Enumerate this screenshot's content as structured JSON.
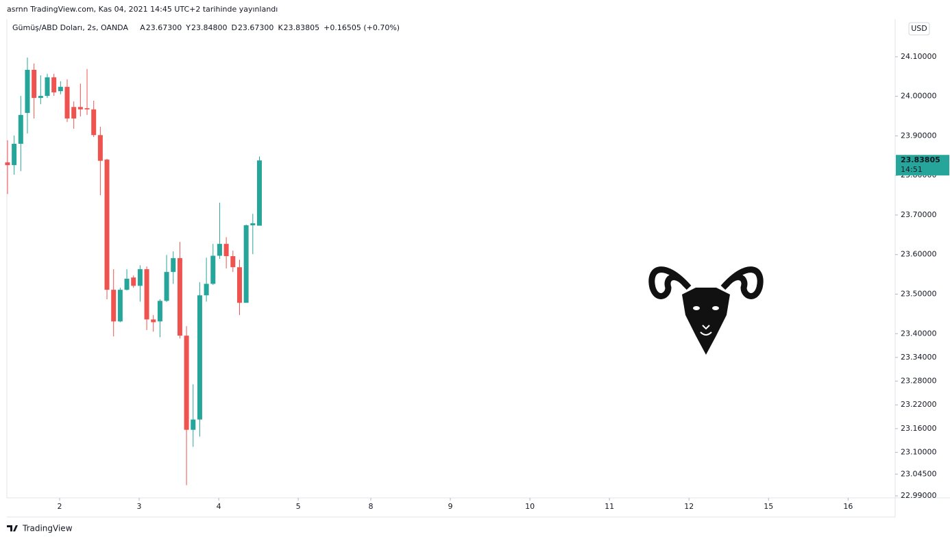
{
  "header": {
    "published": "asrnn TradingView.com, Kas 04, 2021 14:45 UTC+2 tarihinde yayınlandı",
    "symbol": "Gümüş/ABD Doları, 2s, OANDA",
    "ohlc": [
      {
        "key": "A",
        "value": "23.67300"
      },
      {
        "key": "Y",
        "value": "23.84800"
      },
      {
        "key": "D",
        "value": "23.67300"
      },
      {
        "key": "K",
        "value": "23.83805"
      }
    ],
    "change": "+0.16505 (+0.70%)"
  },
  "currency": "USD",
  "last_price_label": "23.83805",
  "countdown": "14:51",
  "footer": "TradingView",
  "chart_data": {
    "type": "candlestick",
    "up_color": "#26a69a",
    "down_color": "#ef5350",
    "open": [
      23.833,
      23.826,
      23.88,
      23.958,
      24.067,
      23.996,
      24.001,
      24.048,
      24.013,
      24.024,
      23.973,
      23.973,
      23.97,
      23.967,
      23.902,
      23.84,
      23.511,
      23.431,
      23.511,
      23.542,
      23.521,
      23.563,
      23.436,
      23.431,
      23.483,
      23.556,
      23.591,
      23.395,
      23.157,
      23.183,
      23.497,
      23.526,
      23.597,
      23.627,
      23.596,
      23.568,
      23.478,
      23.674,
      23.673
    ],
    "high": [
      23.889,
      23.901,
      24.001,
      24.098,
      24.083,
      24.053,
      24.057,
      24.057,
      24.038,
      24.043,
      23.987,
      24.032,
      24.069,
      23.989,
      23.923,
      23.842,
      23.563,
      23.516,
      23.563,
      23.547,
      23.573,
      23.57,
      23.447,
      23.487,
      23.599,
      23.608,
      23.632,
      23.419,
      23.272,
      23.53,
      23.592,
      23.627,
      23.731,
      23.644,
      23.61,
      23.587,
      23.676,
      23.703,
      23.848
    ],
    "low": [
      23.753,
      23.802,
      23.811,
      23.906,
      23.944,
      23.98,
      23.996,
      24.001,
      24.005,
      23.935,
      23.918,
      23.949,
      23.953,
      23.897,
      23.75,
      23.487,
      23.393,
      23.429,
      23.509,
      23.516,
      23.481,
      23.409,
      23.405,
      23.391,
      23.48,
      23.526,
      23.388,
      23.017,
      23.114,
      23.14,
      23.481,
      23.523,
      23.589,
      23.565,
      23.556,
      23.447,
      23.478,
      23.601,
      23.673
    ],
    "close": [
      23.826,
      23.88,
      23.953,
      24.067,
      23.996,
      24.001,
      24.048,
      24.01,
      24.024,
      23.944,
      23.944,
      23.967,
      23.967,
      23.902,
      23.837,
      23.511,
      23.431,
      23.511,
      23.539,
      23.521,
      23.563,
      23.436,
      23.429,
      23.483,
      23.556,
      23.591,
      23.395,
      23.157,
      23.183,
      23.497,
      23.526,
      23.597,
      23.627,
      23.596,
      23.568,
      23.478,
      23.674,
      23.679,
      23.838
    ],
    "xlim": [
      -0.1,
      133.9
    ],
    "xticks": [
      {
        "value": 7.86,
        "label": "2"
      },
      {
        "value": 19.86,
        "label": "3"
      },
      {
        "value": 31.86,
        "label": "4"
      },
      {
        "value": 43.86,
        "label": "5"
      },
      {
        "value": 54.8,
        "label": "8"
      },
      {
        "value": 66.8,
        "label": "9"
      },
      {
        "value": 78.8,
        "label": "10"
      },
      {
        "value": 90.8,
        "label": "11"
      },
      {
        "value": 102.8,
        "label": "12"
      },
      {
        "value": 114.8,
        "label": "15"
      },
      {
        "value": 126.8,
        "label": "16"
      }
    ],
    "ylim": [
      22.985,
      24.195
    ],
    "yticks": [
      {
        "value": 24.1,
        "label": "24.10000"
      },
      {
        "value": 24.0,
        "label": "24.00000"
      },
      {
        "value": 23.9,
        "label": "23.90000"
      },
      {
        "value": 23.8,
        "label": "23.80000"
      },
      {
        "value": 23.7,
        "label": "23.70000"
      },
      {
        "value": 23.6,
        "label": "23.60000"
      },
      {
        "value": 23.5,
        "label": "23.50000"
      },
      {
        "value": 23.4,
        "label": "23.40000"
      },
      {
        "value": 23.34,
        "label": "23.34000"
      },
      {
        "value": 23.28,
        "label": "23.28000"
      },
      {
        "value": 23.22,
        "label": "23.22000"
      },
      {
        "value": 23.16,
        "label": "23.16000"
      },
      {
        "value": 23.1,
        "label": "23.10000"
      },
      {
        "value": 23.045,
        "label": "23.04500"
      },
      {
        "value": 22.99,
        "label": "22.99000"
      }
    ],
    "grid": false
  }
}
